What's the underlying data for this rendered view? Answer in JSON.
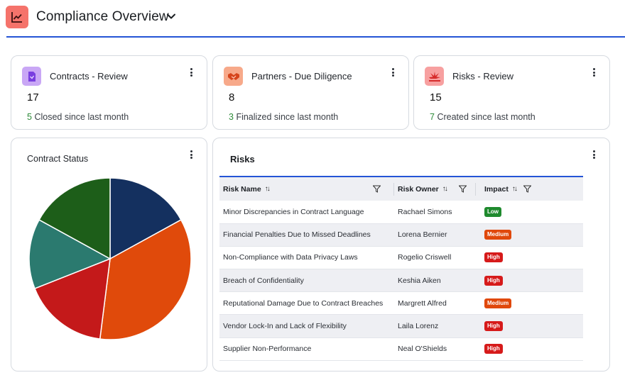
{
  "header": {
    "title": "Compliance Overview",
    "icon": "line-chart-icon",
    "accent_color": "#f5736b",
    "underline_color": "#2454d6"
  },
  "stats": [
    {
      "label": "Contracts - Review",
      "value": "17",
      "delta": "5",
      "delta_text": "Closed since last month",
      "icon": "document-icon",
      "icon_bg": "#c9a7f5",
      "icon_color": "#7a3fe0"
    },
    {
      "label": "Partners - Due Diligence",
      "value": "8",
      "delta": "3",
      "delta_text": "Finalized since last month",
      "icon": "handshake-icon",
      "icon_bg": "#f7a98a",
      "icon_color": "#d6451c"
    },
    {
      "label": "Risks - Review",
      "value": "15",
      "delta": "7",
      "delta_text": "Created since last month",
      "icon": "warning-burst-icon",
      "icon_bg": "#f7a0a0",
      "icon_color": "#d62b2b"
    }
  ],
  "contract_status": {
    "title": "Contract Status"
  },
  "chart_data": {
    "type": "pie",
    "title": "Contract Status",
    "slices": [
      {
        "value": 17,
        "color": "#14305f"
      },
      {
        "value": 35,
        "color": "#e04a0b"
      },
      {
        "value": 17,
        "color": "#c4191a"
      },
      {
        "value": 14,
        "color": "#2b7a6f"
      },
      {
        "value": 17,
        "color": "#1d5e19"
      }
    ]
  },
  "risks": {
    "title": "Risks",
    "columns": [
      "Risk Name",
      "Risk Owner",
      "Impact"
    ],
    "rows": [
      {
        "name": "Minor Discrepancies in Contract Language",
        "owner": "Rachael Simons",
        "impact": "Low"
      },
      {
        "name": "Financial Penalties Due to Missed Deadlines",
        "owner": "Lorena Bernier",
        "impact": "Medium"
      },
      {
        "name": "Non-Compliance with Data Privacy Laws",
        "owner": "Rogelio Criswell",
        "impact": "High"
      },
      {
        "name": "Breach of Confidentiality",
        "owner": "Keshia Aiken",
        "impact": "High"
      },
      {
        "name": "Reputational Damage Due to Contract Breaches",
        "owner": "Margrett Alfred",
        "impact": "Medium"
      },
      {
        "name": "Vendor Lock-In and Lack of Flexibility",
        "owner": "Laila Lorenz",
        "impact": "High"
      },
      {
        "name": "Supplier Non-Performance",
        "owner": "Neal O'Shields",
        "impact": "High"
      }
    ],
    "impact_colors": {
      "Low": "#1f8a2e",
      "Medium": "#e0480b",
      "High": "#d61a1a"
    }
  }
}
